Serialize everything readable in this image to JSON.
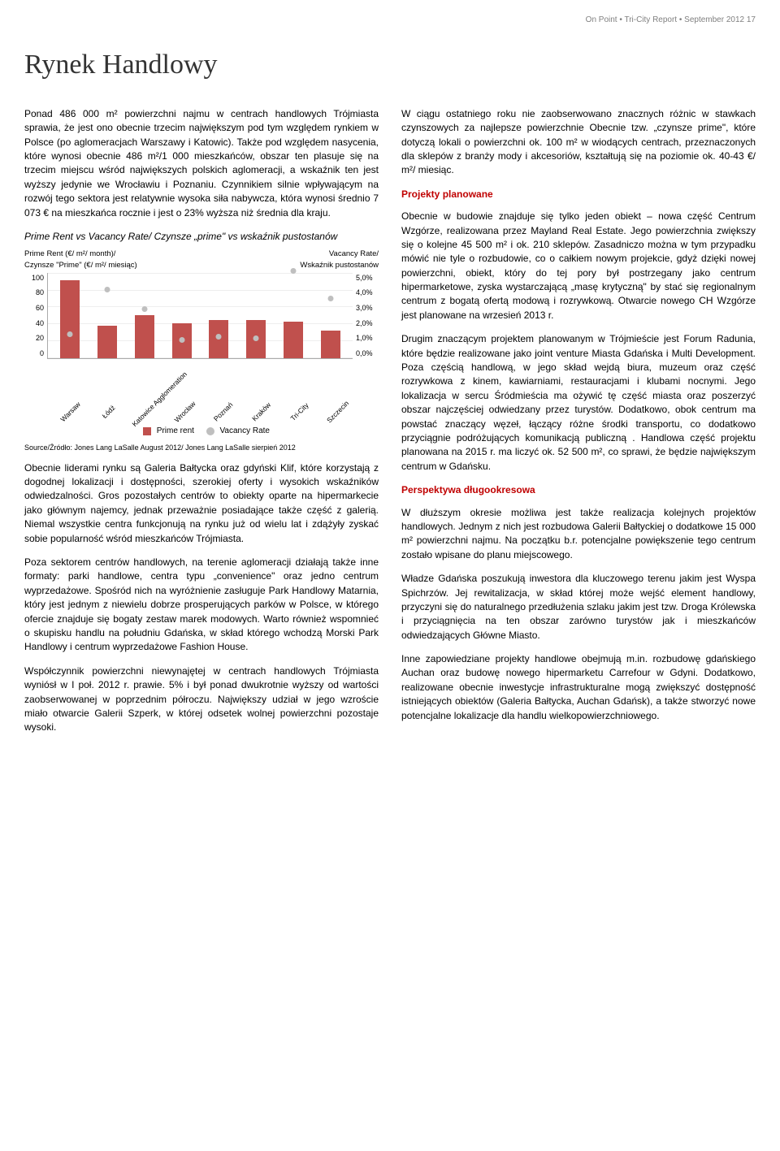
{
  "header": "On Point • Tri-City Report • September 2012  17",
  "title": "Rynek Handlowy",
  "left": {
    "p1": "Ponad 486 000 m² powierzchni najmu w centrach handlowych Trójmiasta sprawia, że jest ono obecnie trzecim największym pod tym względem rynkiem w Polsce (po aglomeracjach Warszawy i Katowic). Także pod względem nasycenia, które wynosi obecnie 486 m²/1 000 mieszkańców, obszar ten plasuje się na trzecim miejscu wśród największych polskich aglomeracji, a wskaźnik ten jest wyższy jedynie we Wrocławiu i Poznaniu. Czynnikiem silnie wpływającym na rozwój tego sektora jest relatywnie wysoka siła nabywcza, która wynosi średnio 7 073 € na mieszkańca rocznie i jest o 23% wyższa niż średnia dla kraju.",
    "chart_title": "Prime Rent vs Vacancy Rate/ Czynsze „prime\" vs wskaźnik pustostanów",
    "axis_left_label": "Prime Rent (€/ m²/ month)/\nCzynsze \"Prime\" (€/ m²/ miesiąc)",
    "axis_right_label": "Vacancy Rate/\nWskaźnik pustostanów",
    "legend_prime": "Prime rent",
    "legend_vac": "Vacancy Rate",
    "source": "Source/Źródło: Jones Lang LaSalle August 2012/ Jones Lang LaSalle sierpień 2012",
    "p2": "Obecnie liderami rynku są Galeria Bałtycka oraz gdyński Klif, które korzystają z dogodnej lokalizacji i dostępności, szerokiej oferty i wysokich wskaźników odwiedzalności. Gros pozostałych centrów to obiekty oparte na hipermarkecie jako głównym najemcy, jednak przeważnie posiadające także część z galerią. Niemal wszystkie centra funkcjonują na rynku już od wielu lat i zdążyły zyskać sobie popularność wśród mieszkańców Trójmiasta.",
    "p3": "Poza sektorem centrów handlowych, na terenie aglomeracji działają także inne formaty: parki handlowe, centra typu „convenience\" oraz jedno centrum wyprzedażowe. Spośród nich na wyróżnienie zasługuje Park Handlowy Matarnia, który jest jednym z niewielu dobrze prosperujących parków w Polsce, w którego ofercie znajduje się bogaty zestaw marek modowych. Warto również wspomnieć o skupisku handlu na południu Gdańska, w skład którego wchodzą Morski Park Handlowy i centrum wyprzedażowe Fashion House.",
    "p4": "Współczynnik powierzchni niewynajętej w centrach handlowych Trójmiasta wyniósł w I poł. 2012 r. prawie. 5% i był ponad dwukrotnie wyższy od wartości zaobserwowanej w poprzednim półroczu. Największy udział w jego wzroście miało otwarcie Galerii Szperk, w której odsetek wolnej powierzchni pozostaje wysoki."
  },
  "right": {
    "p1": "W ciągu ostatniego roku nie zaobserwowano znacznych różnic w stawkach czynszowych za najlepsze powierzchnie Obecnie tzw. „czynsze prime\", które dotyczą lokali o powierzchni ok. 100 m² w wiodących centrach, przeznaczonych dla sklepów z branży mody i akcesoriów, kształtują się na poziomie ok.  40-43 €/ m²/ miesiąc.",
    "h1": "Projekty planowane",
    "p2": "Obecnie w budowie znajduje się tylko jeden obiekt – nowa część Centrum Wzgórze, realizowana przez Mayland Real Estate. Jego powierzchnia zwiększy się o kolejne 45 500 m² i ok. 210 sklepów. Zasadniczo można w tym przypadku mówić nie tyle o rozbudowie, co o całkiem nowym projekcie, gdyż dzięki nowej powierzchni, obiekt, który do tej pory był postrzegany jako centrum hipermarketowe, zyska wystarczającą „masę krytyczną\" by stać się regionalnym centrum z bogatą ofertą modową i rozrywkową. Otwarcie nowego CH Wzgórze jest planowane na wrzesień 2013 r.",
    "p3": "Drugim znaczącym projektem planowanym w Trójmieście jest Forum Radunia, które będzie realizowane jako joint venture Miasta Gdańska i Multi Development. Poza częścią handlową, w jego skład wejdą biura, muzeum oraz część rozrywkowa z kinem, kawiarniami, restauracjami i klubami nocnymi. Jego lokalizacja w sercu Śródmieścia ma ożywić tę część miasta oraz poszerzyć obszar najczęściej odwiedzany przez turystów. Dodatkowo, obok centrum ma powstać znaczący węzeł, łączący różne środki transportu, co dodatkowo przyciągnie podróżujących komunikacją publiczną . Handlowa część projektu planowana na 2015 r. ma liczyć ok. 52 500 m², co sprawi, że będzie największym centrum w Gdańsku.",
    "h2": "Perspektywa długookresowa",
    "p4": "W dłuższym okresie możliwa jest także realizacja kolejnych projektów handlowych. Jednym z nich jest rozbudowa Galerii Bałtyckiej o dodatkowe 15 000 m² powierzchni najmu. Na początku b.r. potencjalne powiększenie tego centrum zostało wpisane do planu miejscowego.",
    "p5": "Władze Gdańska poszukują inwestora dla kluczowego terenu jakim jest Wyspa Spichrzów. Jej rewitalizacja, w skład której może wejść element handlowy, przyczyni się do naturalnego przedłużenia szlaku jakim jest tzw. Droga Królewska i przyciągnięcia na ten obszar zarówno turystów jak i mieszkańców odwiedzających Główne Miasto.",
    "p6": "Inne zapowiedziane projekty handlowe obejmują m.in. rozbudowę gdańskiego Auchan oraz budowę nowego hipermarketu Carrefour w Gdyni. Dodatkowo, realizowane obecnie inwestycje infrastrukturalne mogą zwiększyć dostępność istniejących obiektów (Galeria Bałtycka, Auchan Gdańsk), a także stworzyć nowe potencjalne lokalizacje dla handlu wielkopowierzchniowego."
  },
  "chart": {
    "type": "bar",
    "y_left_ticks": [
      "100",
      "80",
      "60",
      "40",
      "20",
      "0"
    ],
    "y_right_ticks": [
      "5,0%",
      "4,0%",
      "3,0%",
      "2,0%",
      "1,0%",
      "0,0%"
    ],
    "ylim_rent": [
      0,
      100
    ],
    "ylim_vac": [
      0,
      5
    ],
    "bar_color": "#c0504d",
    "vacancy_color": "#bfbfbf",
    "grid_color": "#eeeeee",
    "categories": [
      "Warsaw",
      "Łódź",
      "Katowice Agglomeration",
      "Wrocław",
      "Poznań",
      "Kraków",
      "Tri-City",
      "Szczecin"
    ],
    "prime_rent": [
      90,
      38,
      50,
      40,
      44,
      44,
      42,
      32
    ],
    "vacancy": [
      1.2,
      3.8,
      2.7,
      0.9,
      1.1,
      1.0,
      4.9,
      3.3
    ]
  }
}
